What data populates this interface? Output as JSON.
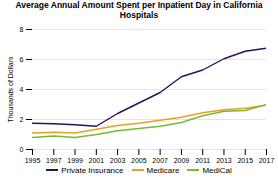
{
  "chart_data": {
    "type": "line",
    "title": "Average Annual Amount Spent per Inpatient Day in California Hospitals",
    "ylabel": "Thousands of Dollars",
    "x": [
      1995,
      1997,
      1999,
      2001,
      2003,
      2005,
      2007,
      2009,
      2011,
      2013,
      2015,
      2017
    ],
    "series": [
      {
        "name": "Private Insurance",
        "color": "#2d0f5e",
        "values": [
          1.75,
          1.72,
          1.65,
          1.55,
          2.4,
          3.1,
          3.8,
          4.85,
          5.3,
          6.05,
          6.55,
          6.75
        ]
      },
      {
        "name": "Medicare",
        "color": "#e8a020",
        "values": [
          1.1,
          1.15,
          1.1,
          1.35,
          1.6,
          1.75,
          1.95,
          2.15,
          2.45,
          2.65,
          2.75,
          2.95
        ]
      },
      {
        "name": "MediCal",
        "color": "#7ab832",
        "values": [
          0.8,
          0.9,
          0.8,
          1.0,
          1.25,
          1.4,
          1.55,
          1.8,
          2.25,
          2.55,
          2.6,
          3.0
        ]
      }
    ],
    "xlim": [
      1995,
      2017
    ],
    "xticks": [
      1995,
      1997,
      1999,
      2001,
      2003,
      2005,
      2007,
      2009,
      2011,
      2013,
      2015,
      2017
    ],
    "ylim": [
      0,
      8
    ],
    "yticks": [
      0,
      2,
      4,
      6,
      8
    ],
    "grid": true,
    "legend": "bottom"
  }
}
